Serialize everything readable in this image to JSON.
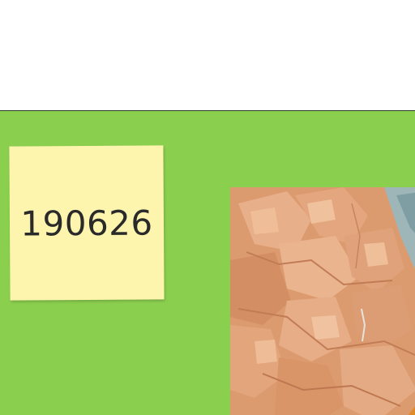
{
  "board": {
    "background_color": "#8bcf4f",
    "sticky_note": {
      "text": "190626",
      "color": "#fdf5ad"
    },
    "image_card": {
      "description_icon": "image-thumbnail"
    }
  }
}
